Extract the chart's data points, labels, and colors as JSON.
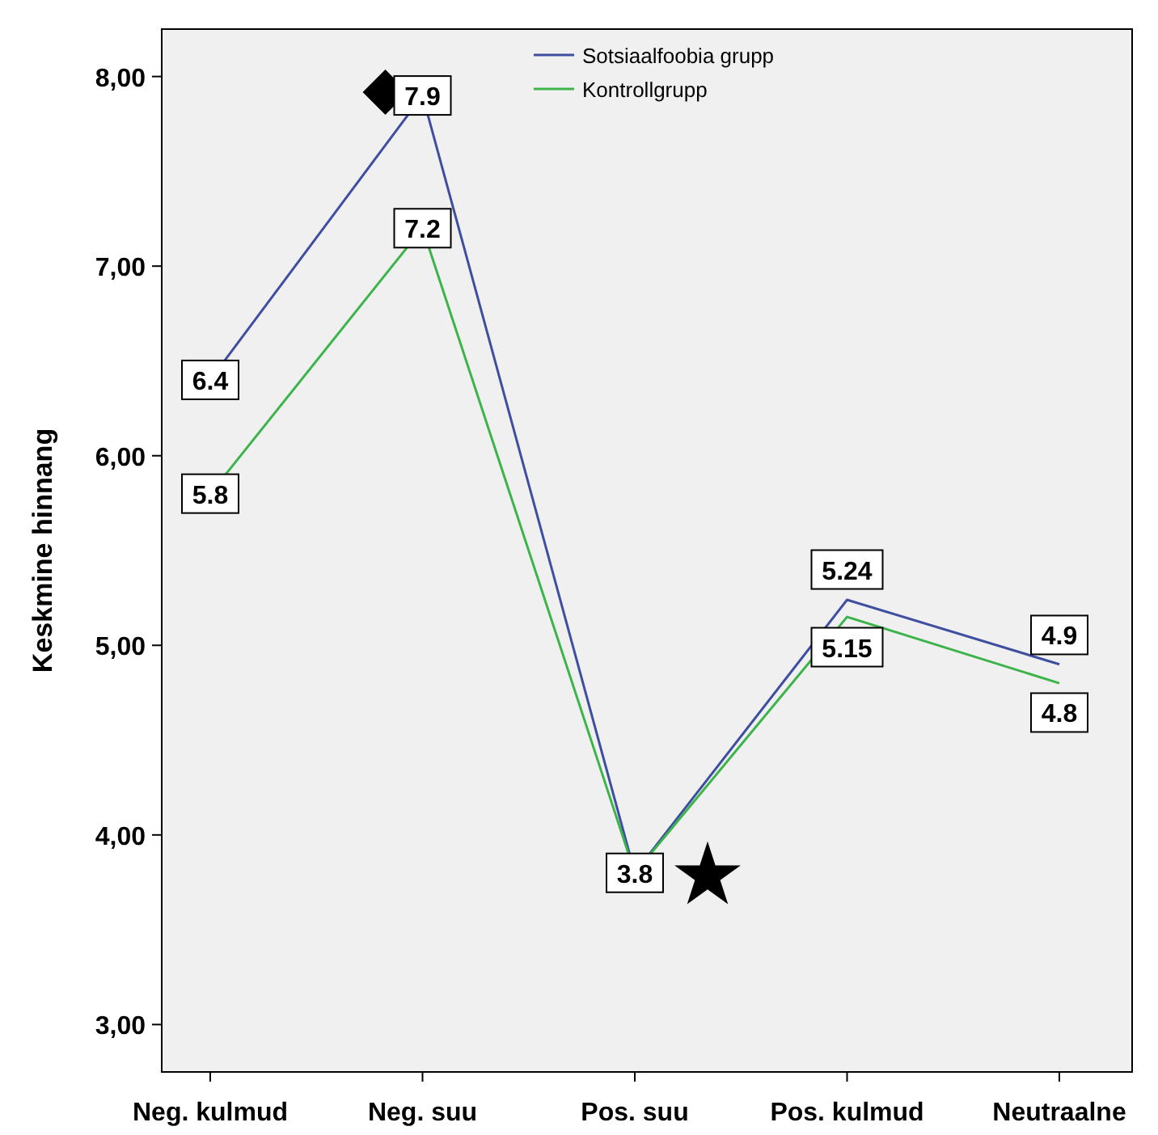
{
  "chart_data": {
    "type": "line",
    "ylabel": "Keskmine hinnang",
    "categories": [
      "Neg. kulmud",
      "Neg. suu",
      "Pos. suu",
      "Pos. kulmud",
      "Neutraalne"
    ],
    "series": [
      {
        "name": "Sotsiaalfoobia grupp",
        "color": "#3f4fa0",
        "values": [
          6.4,
          7.9,
          3.8,
          5.24,
          4.9
        ],
        "value_labels": [
          "6.4",
          "7.9",
          "3.8",
          "5.24",
          "4.9"
        ]
      },
      {
        "name": "Kontrollgrupp",
        "color": "#3cb44a",
        "values": [
          5.8,
          7.2,
          3.8,
          5.15,
          4.8
        ],
        "value_labels": [
          "5.8",
          "7.2",
          null,
          "5.15",
          "4.8"
        ]
      }
    ],
    "ylim": [
      2.75,
      8.25
    ],
    "yticks": [
      {
        "value": 3,
        "label": "3,00"
      },
      {
        "value": 4,
        "label": "4,00"
      },
      {
        "value": 5,
        "label": "5,00"
      },
      {
        "value": 6,
        "label": "6,00"
      },
      {
        "value": 7,
        "label": "7,00"
      },
      {
        "value": 8,
        "label": "8,00"
      }
    ],
    "legend": "top right",
    "line_style": "solid",
    "grid": false
  }
}
